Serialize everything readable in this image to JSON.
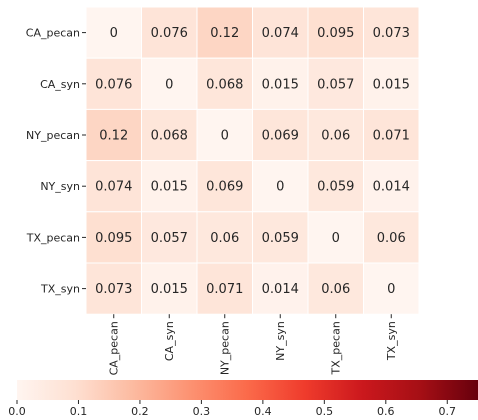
{
  "chart_data": {
    "type": "heatmap",
    "rows": [
      "CA_pecan",
      "CA_syn",
      "NY_pecan",
      "NY_syn",
      "TX_pecan",
      "TX_syn"
    ],
    "columns": [
      "CA_pecan",
      "CA_syn",
      "NY_pecan",
      "NY_syn",
      "TX_pecan",
      "TX_syn"
    ],
    "values": [
      [
        0,
        0.076,
        0.12,
        0.074,
        0.095,
        0.073
      ],
      [
        0.076,
        0,
        0.068,
        0.015,
        0.057,
        0.015
      ],
      [
        0.12,
        0.068,
        0,
        0.069,
        0.06,
        0.071
      ],
      [
        0.074,
        0.015,
        0.069,
        0,
        0.059,
        0.014
      ],
      [
        0.095,
        0.057,
        0.06,
        0.059,
        0,
        0.06
      ],
      [
        0.073,
        0.015,
        0.071,
        0.014,
        0.06,
        0
      ]
    ],
    "value_labels": [
      [
        "0",
        "0.076",
        "0.12",
        "0.074",
        "0.095",
        "0.073"
      ],
      [
        "0.076",
        "0",
        "0.068",
        "0.015",
        "0.057",
        "0.015"
      ],
      [
        "0.12",
        "0.068",
        "0",
        "0.069",
        "0.06",
        "0.071"
      ],
      [
        "0.074",
        "0.015",
        "0.069",
        "0",
        "0.059",
        "0.014"
      ],
      [
        "0.095",
        "0.057",
        "0.06",
        "0.059",
        "0",
        "0.06"
      ],
      [
        "0.073",
        "0.015",
        "0.071",
        "0.014",
        "0.06",
        "0"
      ]
    ],
    "colormap": "Reds",
    "colorbar": {
      "orientation": "horizontal",
      "range": [
        0,
        0.75
      ],
      "ticks": [
        0.0,
        0.1,
        0.2,
        0.3,
        0.4,
        0.5,
        0.6,
        0.7
      ],
      "tick_labels": [
        "0.0",
        "0.1",
        "0.2",
        "0.3",
        "0.4",
        "0.5",
        "0.6",
        "0.7"
      ]
    },
    "title": "",
    "xlabel": "",
    "ylabel": ""
  }
}
